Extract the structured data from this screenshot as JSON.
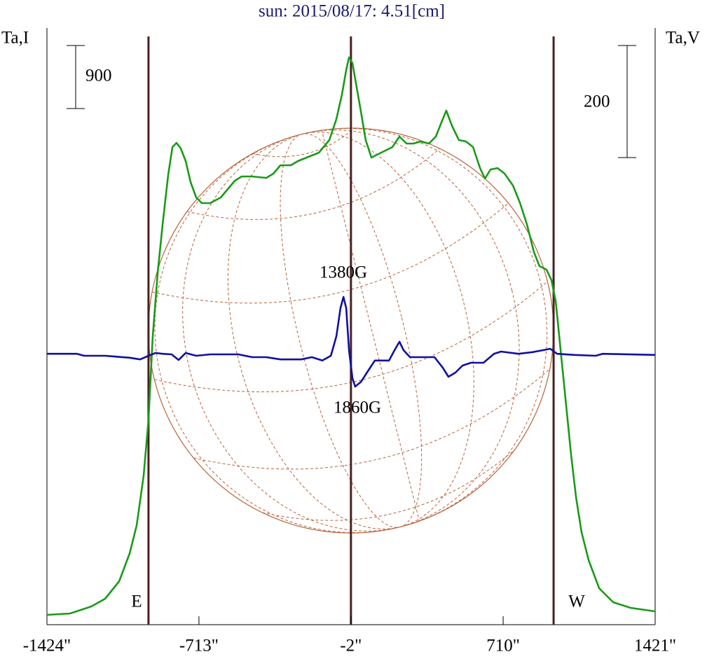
{
  "chart_data": {
    "type": "line",
    "title": "sun: 2015/08/17: 4.51[cm]",
    "ylabel": "Ta,I",
    "y2label": "Ta,V",
    "xlim": [
      -1424,
      1421
    ],
    "xticks": [
      {
        "value": -1424,
        "label": "-1424\""
      },
      {
        "value": -713,
        "label": "-713\""
      },
      {
        "value": -2,
        "label": "-2\""
      },
      {
        "value": 710,
        "label": "710\""
      },
      {
        "value": 1421,
        "label": "1421\""
      }
    ],
    "ylim": [
      -120,
      8400
    ],
    "y2lim": [
      -482.5,
      582.5
    ],
    "scale_bars": {
      "y": 900,
      "y2": 200
    },
    "vlines": [
      -949,
      -2,
      946
    ],
    "annotations": [
      "E",
      "W",
      "1380G",
      "1860G"
    ],
    "series": [
      {
        "color": "#1a9a1a",
        "axis": "y",
        "x": [
          -1424,
          -1316,
          -1217,
          -1152,
          -1086,
          -1037,
          -1004,
          -972,
          -949,
          -929,
          -906,
          -883,
          -857,
          -837,
          -818,
          -798,
          -775,
          -752,
          -726,
          -700,
          -660,
          -611,
          -578,
          -545,
          -513,
          -464,
          -398,
          -365,
          -332,
          -283,
          -250,
          -201,
          -152,
          -103,
          -70,
          -44,
          -24,
          -11,
          5,
          22,
          45,
          67,
          94,
          126,
          159,
          192,
          225,
          258,
          290,
          323,
          363,
          395,
          421,
          444,
          471,
          503,
          536,
          569,
          602,
          625,
          651,
          684,
          717,
          756,
          789,
          821,
          854,
          880,
          913,
          936,
          956,
          979,
          1005,
          1028,
          1051,
          1077,
          1110,
          1159,
          1225,
          1307,
          1421
        ],
        "values": [
          20,
          40,
          140,
          250,
          500,
          900,
          1300,
          2000,
          2800,
          4000,
          4900,
          5600,
          6300,
          6700,
          6760,
          6680,
          6500,
          6200,
          5980,
          5900,
          5900,
          5980,
          6100,
          6220,
          6280,
          6280,
          6260,
          6320,
          6440,
          6440,
          6500,
          6560,
          6620,
          6800,
          7100,
          7450,
          7800,
          7980,
          7900,
          7600,
          7200,
          6800,
          6550,
          6600,
          6650,
          6700,
          6850,
          6750,
          6750,
          6780,
          6750,
          6850,
          7050,
          7220,
          7000,
          6800,
          6780,
          6700,
          6400,
          6250,
          6380,
          6400,
          6320,
          6150,
          5900,
          5600,
          5200,
          5000,
          4950,
          4800,
          4500,
          3800,
          3000,
          2300,
          1700,
          1200,
          800,
          400,
          200,
          120,
          70
        ]
      },
      {
        "color": "#1010a0",
        "axis": "y2",
        "x": [
          -1424,
          -1283,
          -1250,
          -1152,
          -1103,
          -1037,
          -988,
          -949,
          -916,
          -883,
          -841,
          -808,
          -775,
          -726,
          -660,
          -529,
          -464,
          -398,
          -332,
          -234,
          -185,
          -136,
          -96,
          -70,
          -51,
          -37,
          -24,
          -11,
          5,
          18,
          45,
          77,
          110,
          176,
          202,
          225,
          244,
          274,
          389,
          428,
          454,
          487,
          520,
          559,
          618,
          667,
          700,
          782,
          848,
          897,
          930,
          962,
          1044,
          1143,
          1175,
          1421
        ],
        "values": [
          1,
          1,
          -2.5,
          -2.5,
          -4,
          -6,
          -9,
          -2.5,
          2.5,
          1,
          0,
          -10,
          2.5,
          -2.5,
          0,
          0,
          -5,
          -5,
          -9,
          -9,
          -5,
          -11,
          -2.5,
          32.5,
          82.5,
          102.5,
          82.5,
          7.5,
          -42.5,
          -57.5,
          -49,
          -30,
          -11,
          -11,
          7.5,
          22.5,
          7.5,
          -5,
          -5,
          -24,
          -40,
          -32.5,
          -20,
          -15,
          -15,
          1,
          5,
          1,
          4,
          7.5,
          10,
          1,
          -1,
          -2.5,
          1,
          -1
        ]
      }
    ]
  }
}
